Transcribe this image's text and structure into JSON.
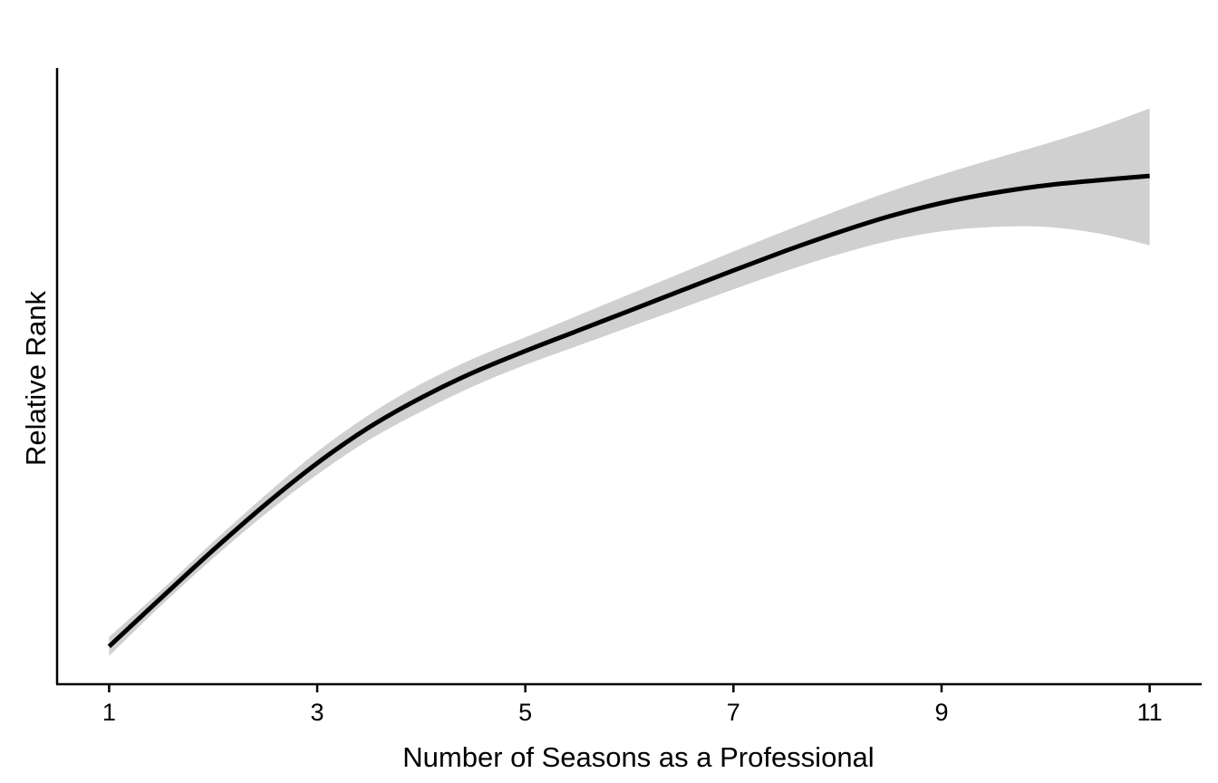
{
  "chart_data": {
    "type": "line",
    "title": "",
    "xlabel": "Number of Seasons as a Professional",
    "ylabel": "Relative Rank",
    "xlim": [
      0.5,
      11.5
    ],
    "ylim": [
      0,
      1
    ],
    "x_ticks": [
      1,
      3,
      5,
      7,
      9,
      11
    ],
    "y_ticks": [],
    "grid": false,
    "legend": "none",
    "series": [
      {
        "x": [
          1,
          1.5,
          2,
          2.5,
          3,
          3.5,
          4,
          4.5,
          5,
          5.5,
          6,
          6.5,
          7,
          7.5,
          8,
          8.5,
          9,
          9.5,
          10,
          10.5,
          11
        ],
        "y": [
          0.06,
          0.137,
          0.213,
          0.285,
          0.351,
          0.408,
          0.455,
          0.495,
          0.529,
          0.561,
          0.593,
          0.625,
          0.657,
          0.688,
          0.717,
          0.743,
          0.764,
          0.78,
          0.792,
          0.8,
          0.807
        ],
        "ci_lower": [
          0.045,
          0.125,
          0.2,
          0.27,
          0.333,
          0.388,
          0.433,
          0.473,
          0.507,
          0.537,
          0.567,
          0.597,
          0.627,
          0.656,
          0.682,
          0.704,
          0.719,
          0.726,
          0.726,
          0.716,
          0.697
        ],
        "ci_upper": [
          0.075,
          0.149,
          0.226,
          0.3,
          0.369,
          0.428,
          0.477,
          0.517,
          0.551,
          0.585,
          0.619,
          0.653,
          0.687,
          0.72,
          0.752,
          0.782,
          0.809,
          0.834,
          0.858,
          0.884,
          0.914
        ]
      }
    ],
    "colors": {
      "line": "#000000",
      "ribbon": "#d0d0d0",
      "axis": "#000000"
    }
  }
}
